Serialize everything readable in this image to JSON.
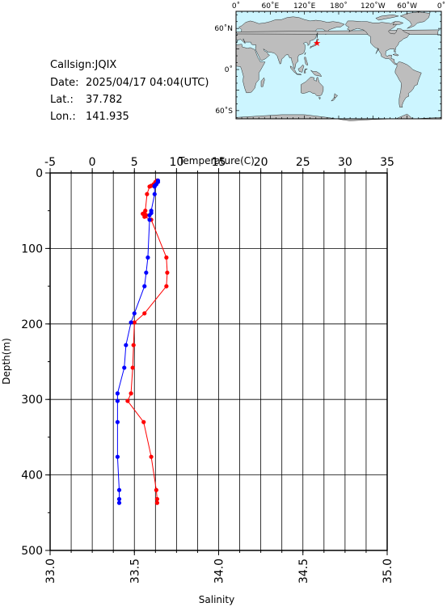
{
  "station": {
    "callsign": "Callsign:JQIX",
    "date_label": "Date:",
    "date": "2025/04/17 04:04(UTC)",
    "lat_label": "Lat.:",
    "lat": "37.782",
    "lon_label": "Lon.:",
    "lon": "141.935"
  },
  "map": {
    "lon_labels": [
      "0˚",
      "60˚E",
      "120˚E",
      "180˚",
      "120˚W",
      "60˚W",
      "0˚"
    ],
    "lat_labels": [
      "60˚N",
      "0˚",
      "60˚S"
    ],
    "ocean_color": "#ccf5ff",
    "land_color": "#bdbdbd",
    "marker_color": "#ff0000"
  },
  "chart_data": {
    "type": "scatter",
    "xlabel_top": "Temperature(C)",
    "xlabel_bottom": "Salinity",
    "ylabel": "Depth(m)",
    "top_ticks": [
      "-5",
      "0",
      "5",
      "10",
      "15",
      "20",
      "25",
      "30",
      "35"
    ],
    "bottom_ticks": [
      "33.0",
      "33.5",
      "34.0",
      "34.5",
      "35.0"
    ],
    "y_ticks": [
      "0",
      "100",
      "200",
      "300",
      "400",
      "500"
    ],
    "temperature_range": [
      -5,
      35
    ],
    "salinity_range": [
      33.0,
      35.0
    ],
    "depth_range": [
      0,
      500
    ],
    "grid": true,
    "series": [
      {
        "name": "Temperature",
        "color": "#ff0000",
        "axis": "top",
        "points": [
          [
            7.7,
            10
          ],
          [
            7.5,
            12
          ],
          [
            7.3,
            15
          ],
          [
            7.0,
            17
          ],
          [
            6.8,
            18
          ],
          [
            6.5,
            28
          ],
          [
            6.3,
            50
          ],
          [
            6.2,
            53
          ],
          [
            6.0,
            54
          ],
          [
            6.4,
            56
          ],
          [
            6.2,
            58
          ],
          [
            7.0,
            62
          ],
          [
            8.8,
            112
          ],
          [
            8.9,
            132
          ],
          [
            8.8,
            150
          ],
          [
            6.2,
            186
          ],
          [
            5.0,
            198
          ],
          [
            4.9,
            228
          ],
          [
            4.8,
            258
          ],
          [
            4.6,
            292
          ],
          [
            4.2,
            302
          ],
          [
            6.1,
            330
          ],
          [
            7.0,
            376
          ],
          [
            7.6,
            420
          ],
          [
            7.7,
            432
          ],
          [
            7.7,
            437
          ]
        ]
      },
      {
        "name": "Salinity",
        "color": "#0000ff",
        "axis": "bottom",
        "points": [
          [
            33.64,
            10
          ],
          [
            33.64,
            12
          ],
          [
            33.63,
            15
          ],
          [
            33.62,
            17
          ],
          [
            33.62,
            18
          ],
          [
            33.62,
            28
          ],
          [
            33.6,
            50
          ],
          [
            33.6,
            53
          ],
          [
            33.59,
            56
          ],
          [
            33.59,
            62
          ],
          [
            33.58,
            112
          ],
          [
            33.57,
            132
          ],
          [
            33.56,
            150
          ],
          [
            33.5,
            186
          ],
          [
            33.48,
            198
          ],
          [
            33.45,
            228
          ],
          [
            33.44,
            258
          ],
          [
            33.4,
            292
          ],
          [
            33.4,
            302
          ],
          [
            33.4,
            330
          ],
          [
            33.4,
            376
          ],
          [
            33.41,
            420
          ],
          [
            33.41,
            432
          ],
          [
            33.41,
            437
          ]
        ]
      }
    ]
  }
}
